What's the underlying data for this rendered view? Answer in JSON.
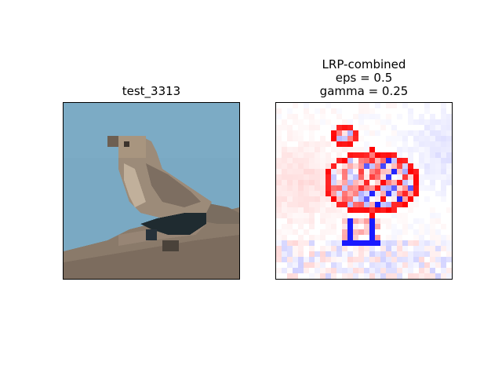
{
  "left_panel": {
    "title": "test_3313"
  },
  "right_panel": {
    "title_lines": [
      "LRP-combined",
      "eps = 0.5",
      "gamma = 0.25"
    ]
  },
  "colors": {
    "sky": "#78a8c2",
    "rock": "#8a7766",
    "bird_body": "#9b8a78",
    "bird_shadow": "#1f2a2e",
    "heat_positive": "#e60000",
    "heat_negative": "#0000e6"
  }
}
